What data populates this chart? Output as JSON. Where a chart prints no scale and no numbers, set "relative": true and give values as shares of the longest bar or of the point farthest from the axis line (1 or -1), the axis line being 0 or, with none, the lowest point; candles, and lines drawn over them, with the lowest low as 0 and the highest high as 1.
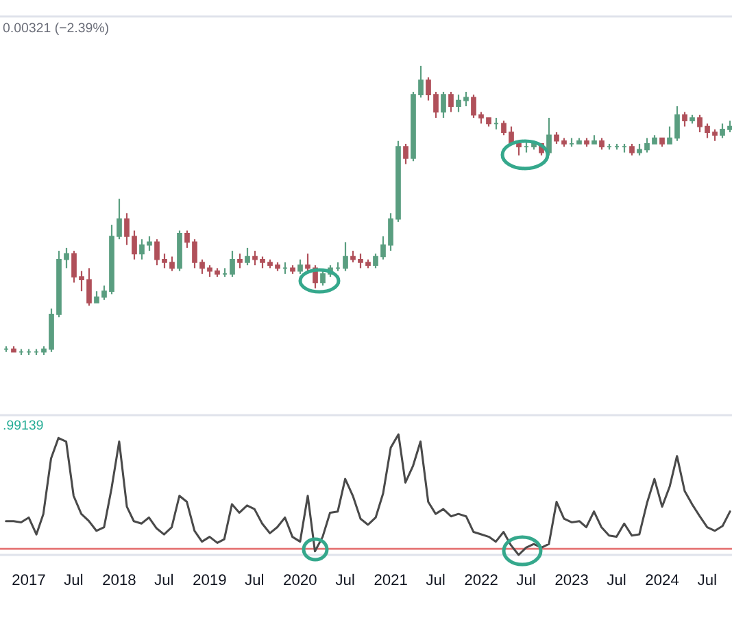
{
  "chart_data": [
    {
      "type": "candlestick",
      "relative": true,
      "tick_labels": false,
      "annotations": [
        "0.00321 (−2.39%)"
      ],
      "categories": [
        null,
        null,
        null,
        null,
        null,
        null,
        null,
        null,
        null,
        null,
        null,
        null,
        null,
        null,
        null,
        null,
        null,
        null,
        null,
        null,
        null,
        null,
        null,
        null,
        null,
        null,
        null,
        null,
        null,
        null,
        null,
        null,
        null,
        null,
        null,
        null,
        null,
        null,
        null,
        null,
        null,
        null,
        null,
        null,
        null,
        null,
        null,
        null,
        null,
        null,
        null,
        null,
        null,
        null,
        null,
        null,
        null,
        null,
        null,
        null,
        null,
        null,
        null,
        null,
        null,
        null,
        null,
        null,
        null,
        null,
        null,
        null,
        null,
        null,
        null,
        null,
        null,
        null,
        null,
        null,
        null,
        null,
        null,
        null,
        null,
        null,
        null,
        null,
        null,
        null,
        null,
        null,
        null,
        null,
        null,
        null,
        null
      ],
      "ohlc": [
        [
          0.02,
          0.03,
          0.01,
          0.02
        ],
        [
          0.02,
          0.03,
          0.01,
          0.01
        ],
        [
          0.01,
          0.02,
          0.0,
          0.01
        ],
        [
          0.01,
          0.02,
          0.0,
          0.01
        ],
        [
          0.01,
          0.02,
          0.0,
          0.01
        ],
        [
          0.01,
          0.03,
          0.0,
          0.02
        ],
        [
          0.02,
          0.16,
          0.01,
          0.14
        ],
        [
          0.14,
          0.36,
          0.13,
          0.33
        ],
        [
          0.33,
          0.37,
          0.3,
          0.35
        ],
        [
          0.35,
          0.36,
          0.25,
          0.27
        ],
        [
          0.27,
          0.29,
          0.22,
          0.26
        ],
        [
          0.26,
          0.3,
          0.17,
          0.18
        ],
        [
          0.18,
          0.22,
          0.18,
          0.2
        ],
        [
          0.2,
          0.24,
          0.19,
          0.22
        ],
        [
          0.22,
          0.45,
          0.21,
          0.41
        ],
        [
          0.41,
          0.54,
          0.4,
          0.47
        ],
        [
          0.47,
          0.49,
          0.38,
          0.41
        ],
        [
          0.41,
          0.43,
          0.33,
          0.35
        ],
        [
          0.35,
          0.4,
          0.33,
          0.38
        ],
        [
          0.38,
          0.41,
          0.36,
          0.39
        ],
        [
          0.39,
          0.4,
          0.31,
          0.33
        ],
        [
          0.33,
          0.35,
          0.3,
          0.32
        ],
        [
          0.32,
          0.34,
          0.29,
          0.3
        ],
        [
          0.3,
          0.43,
          0.29,
          0.42
        ],
        [
          0.42,
          0.43,
          0.37,
          0.39
        ],
        [
          0.39,
          0.4,
          0.3,
          0.32
        ],
        [
          0.32,
          0.33,
          0.28,
          0.3
        ],
        [
          0.3,
          0.31,
          0.27,
          0.29
        ],
        [
          0.29,
          0.3,
          0.27,
          0.28
        ],
        [
          0.28,
          0.3,
          0.27,
          0.28
        ],
        [
          0.28,
          0.36,
          0.27,
          0.33
        ],
        [
          0.33,
          0.35,
          0.3,
          0.32
        ],
        [
          0.32,
          0.37,
          0.31,
          0.34
        ],
        [
          0.34,
          0.36,
          0.31,
          0.33
        ],
        [
          0.33,
          0.34,
          0.3,
          0.32
        ],
        [
          0.32,
          0.33,
          0.3,
          0.31
        ],
        [
          0.31,
          0.32,
          0.29,
          0.3
        ],
        [
          0.3,
          0.32,
          0.28,
          0.3
        ],
        [
          0.3,
          0.31,
          0.28,
          0.29
        ],
        [
          0.29,
          0.33,
          0.28,
          0.31
        ],
        [
          0.31,
          0.35,
          0.29,
          0.3
        ],
        [
          0.3,
          0.31,
          0.23,
          0.25
        ],
        [
          0.25,
          0.29,
          0.24,
          0.28
        ],
        [
          0.28,
          0.31,
          0.27,
          0.3
        ],
        [
          0.3,
          0.32,
          0.29,
          0.3
        ],
        [
          0.3,
          0.39,
          0.29,
          0.34
        ],
        [
          0.34,
          0.36,
          0.32,
          0.33
        ],
        [
          0.33,
          0.35,
          0.3,
          0.32
        ],
        [
          0.32,
          0.33,
          0.3,
          0.31
        ],
        [
          0.31,
          0.35,
          0.3,
          0.34
        ],
        [
          0.34,
          0.41,
          0.33,
          0.38
        ],
        [
          0.38,
          0.49,
          0.36,
          0.47
        ],
        [
          0.47,
          0.74,
          0.46,
          0.72
        ],
        [
          0.72,
          0.73,
          0.66,
          0.68
        ],
        [
          0.68,
          0.91,
          0.67,
          0.9
        ],
        [
          0.9,
          1.0,
          0.89,
          0.95
        ],
        [
          0.95,
          0.96,
          0.88,
          0.9
        ],
        [
          0.9,
          0.91,
          0.82,
          0.84
        ],
        [
          0.84,
          0.91,
          0.82,
          0.9
        ],
        [
          0.9,
          0.91,
          0.84,
          0.86
        ],
        [
          0.86,
          0.9,
          0.84,
          0.88
        ],
        [
          0.88,
          0.91,
          0.86,
          0.89
        ],
        [
          0.89,
          0.9,
          0.82,
          0.83
        ],
        [
          0.83,
          0.84,
          0.8,
          0.82
        ],
        [
          0.82,
          0.82,
          0.79,
          0.8
        ],
        [
          0.8,
          0.82,
          0.78,
          0.8
        ],
        [
          0.8,
          0.81,
          0.76,
          0.77
        ],
        [
          0.77,
          0.79,
          0.73,
          0.73
        ],
        [
          0.73,
          0.73,
          0.69,
          0.72
        ],
        [
          0.72,
          0.74,
          0.7,
          0.72
        ],
        [
          0.72,
          0.74,
          0.71,
          0.73
        ],
        [
          0.73,
          0.73,
          0.69,
          0.7
        ],
        [
          0.7,
          0.82,
          0.69,
          0.76
        ],
        [
          0.76,
          0.77,
          0.73,
          0.74
        ],
        [
          0.74,
          0.75,
          0.72,
          0.73
        ],
        [
          0.73,
          0.75,
          0.72,
          0.73
        ],
        [
          0.73,
          0.75,
          0.73,
          0.74
        ],
        [
          0.74,
          0.75,
          0.72,
          0.73
        ],
        [
          0.73,
          0.76,
          0.73,
          0.74
        ],
        [
          0.74,
          0.75,
          0.71,
          0.72
        ],
        [
          0.72,
          0.73,
          0.71,
          0.72
        ],
        [
          0.72,
          0.73,
          0.71,
          0.72
        ],
        [
          0.72,
          0.73,
          0.7,
          0.72
        ],
        [
          0.72,
          0.73,
          0.69,
          0.7
        ],
        [
          0.7,
          0.73,
          0.69,
          0.71
        ],
        [
          0.71,
          0.75,
          0.7,
          0.73
        ],
        [
          0.73,
          0.76,
          0.73,
          0.75
        ],
        [
          0.75,
          0.75,
          0.72,
          0.73
        ],
        [
          0.73,
          0.79,
          0.73,
          0.75
        ],
        [
          0.75,
          0.86,
          0.74,
          0.83
        ],
        [
          0.83,
          0.84,
          0.79,
          0.81
        ],
        [
          0.81,
          0.83,
          0.8,
          0.82
        ],
        [
          0.82,
          0.83,
          0.77,
          0.79
        ],
        [
          0.79,
          0.8,
          0.75,
          0.77
        ],
        [
          0.77,
          0.78,
          0.74,
          0.76
        ],
        [
          0.76,
          0.8,
          0.75,
          0.78
        ],
        [
          0.78,
          0.81,
          0.77,
          0.79
        ]
      ],
      "colors": [
        "#5a9e80",
        "#b0505a",
        "#5a9e80",
        "#5a9e80",
        "#5a9e80",
        "#5a9e80",
        "#5a9e80",
        "#5a9e80",
        "#5a9e80",
        "#b0505a",
        "#b0505a",
        "#b0505a",
        "#5a9e80",
        "#5a9e80",
        "#5a9e80",
        "#5a9e80",
        "#b0505a",
        "#b0505a",
        "#5a9e80",
        "#5a9e80",
        "#b0505a",
        "#b0505a",
        "#b0505a",
        "#5a9e80",
        "#b0505a",
        "#b0505a",
        "#b0505a",
        "#b0505a",
        "#b0505a",
        "#5a9e80",
        "#5a9e80",
        "#b0505a",
        "#5a9e80",
        "#b0505a",
        "#b0505a",
        "#b0505a",
        "#b0505a",
        "#5a9e80",
        "#b0505a",
        "#5a9e80",
        "#b0505a",
        "#b0505a",
        "#5a9e80",
        "#5a9e80",
        "#5a9e80",
        "#5a9e80",
        "#b0505a",
        "#b0505a",
        "#b0505a",
        "#5a9e80",
        "#5a9e80",
        "#5a9e80",
        "#5a9e80",
        "#b0505a",
        "#5a9e80",
        "#5a9e80",
        "#b0505a",
        "#b0505a",
        "#5a9e80",
        "#b0505a",
        "#5a9e80",
        "#5a9e80",
        "#b0505a",
        "#b0505a",
        "#b0505a",
        "#5a9e80",
        "#b0505a",
        "#b0505a",
        "#b0505a",
        "#5a9e80",
        "#5a9e80",
        "#b0505a",
        "#5a9e80",
        "#b0505a",
        "#b0505a",
        "#5a9e80",
        "#5a9e80",
        "#b0505a",
        "#5a9e80",
        "#b0505a",
        "#5a9e80",
        "#5a9e80",
        "#5a9e80",
        "#b0505a",
        "#5a9e80",
        "#5a9e80",
        "#5a9e80",
        "#b0505a",
        "#5a9e80",
        "#5a9e80",
        "#b0505a",
        "#5a9e80",
        "#b0505a",
        "#b0505a",
        "#b0505a",
        "#5a9e80",
        "#5a9e80"
      ]
    },
    {
      "type": "line",
      "relative": true,
      "tick_labels": "x",
      "annotations": [
        ".99139"
      ],
      "xlim": [
        "2016-09-07",
        "2024-10-09"
      ],
      "xticks": [
        {
          "value": "2017-01",
          "label": "2017"
        },
        {
          "value": "2017-07",
          "label": "Jul"
        },
        {
          "value": "2018-01",
          "label": "2018"
        },
        {
          "value": "2018-07",
          "label": "Jul"
        },
        {
          "value": "2019-01",
          "label": "2019"
        },
        {
          "value": "2019-07",
          "label": "Jul"
        },
        {
          "value": "2020-01",
          "label": "2020"
        },
        {
          "value": "2020-07",
          "label": "Jul"
        },
        {
          "value": "2021-01",
          "label": "2021"
        },
        {
          "value": "2021-07",
          "label": "Jul"
        },
        {
          "value": "2022-01",
          "label": "2022"
        },
        {
          "value": "2022-07",
          "label": "Jul"
        },
        {
          "value": "2023-01",
          "label": "2023"
        },
        {
          "value": "2023-07",
          "label": "Jul"
        },
        {
          "value": "2024-01",
          "label": "2024"
        },
        {
          "value": "2024-07",
          "label": "Jul"
        }
      ],
      "x": [
        "2016-10",
        "2016-11",
        "2016-12",
        "2017-01",
        "2017-02",
        "2017-03",
        "2017-04",
        "2017-05",
        "2017-06",
        "2017-07",
        "2017-08",
        "2017-09",
        "2017-10",
        "2017-11",
        "2017-12",
        "2018-01",
        "2018-02",
        "2018-03",
        "2018-04",
        "2018-05",
        "2018-06",
        "2018-07",
        "2018-08",
        "2018-09",
        "2018-10",
        "2018-11",
        "2018-12",
        "2019-01",
        "2019-02",
        "2019-03",
        "2019-04",
        "2019-05",
        "2019-06",
        "2019-07",
        "2019-08",
        "2019-09",
        "2019-10",
        "2019-11",
        "2019-12",
        "2020-01",
        "2020-02",
        "2020-03",
        "2020-04",
        "2020-05",
        "2020-06",
        "2020-07",
        "2020-08",
        "2020-09",
        "2020-10",
        "2020-11",
        "2020-12",
        "2021-01",
        "2021-02",
        "2021-03",
        "2021-04",
        "2021-05",
        "2021-06",
        "2021-07",
        "2021-08",
        "2021-09",
        "2021-10",
        "2021-11",
        "2021-12",
        "2022-01",
        "2022-02",
        "2022-03",
        "2022-04",
        "2022-05",
        "2022-06",
        "2022-07",
        "2022-08",
        "2022-09",
        "2022-10",
        "2022-11",
        "2022-12",
        "2023-01",
        "2023-02",
        "2023-03",
        "2023-04",
        "2023-05",
        "2023-06",
        "2023-07",
        "2023-08",
        "2023-09",
        "2023-10",
        "2023-11",
        "2023-12",
        "2024-01",
        "2024-02",
        "2024-03",
        "2024-04",
        "2024-05",
        "2024-06",
        "2024-07",
        "2024-08",
        "2024-09",
        "2024-10"
      ],
      "series": [
        {
          "color": "#4a4a4a",
          "values": [
            0.28,
            0.28,
            0.27,
            0.31,
            0.17,
            0.34,
            0.8,
            0.97,
            0.94,
            0.49,
            0.34,
            0.28,
            0.2,
            0.23,
            0.55,
            0.94,
            0.4,
            0.28,
            0.26,
            0.31,
            0.22,
            0.17,
            0.23,
            0.49,
            0.44,
            0.2,
            0.11,
            0.15,
            0.1,
            0.13,
            0.42,
            0.35,
            0.41,
            0.38,
            0.26,
            0.18,
            0.23,
            0.31,
            0.15,
            0.11,
            0.49,
            0.03,
            0.15,
            0.35,
            0.36,
            0.63,
            0.49,
            0.3,
            0.25,
            0.31,
            0.51,
            0.89,
            1.0,
            0.6,
            0.74,
            0.94,
            0.44,
            0.34,
            0.38,
            0.32,
            0.34,
            0.32,
            0.19,
            0.17,
            0.15,
            0.11,
            0.19,
            0.08,
            0.0,
            0.06,
            0.09,
            0.06,
            0.09,
            0.44,
            0.3,
            0.27,
            0.28,
            0.23,
            0.36,
            0.23,
            0.16,
            0.15,
            0.26,
            0.16,
            0.17,
            0.43,
            0.63,
            0.4,
            0.57,
            0.82,
            0.53,
            0.42,
            0.32,
            0.23,
            0.2,
            0.24,
            0.36
          ]
        }
      ],
      "ref_lines": [
        {
          "axis": "y",
          "value": 0.05,
          "color": "#e57373"
        }
      ]
    }
  ]
}
